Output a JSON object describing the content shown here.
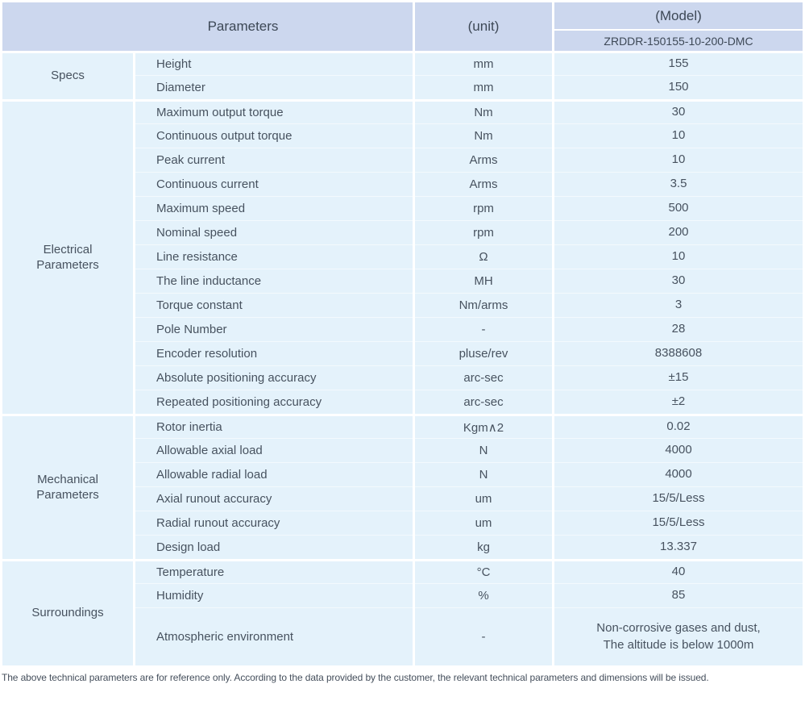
{
  "table": {
    "header": {
      "parameters_label": "Parameters",
      "unit_label": "(unit)",
      "model_label": "(Model)",
      "model_value": "ZRDDR-150155-10-200-DMC"
    },
    "sections": [
      {
        "group": "Specs",
        "rows": [
          {
            "param": "Height",
            "unit": "mm",
            "value": "155"
          },
          {
            "param": "Diameter",
            "unit": "mm",
            "value": "150"
          }
        ]
      },
      {
        "group": "Electrical\nParameters",
        "rows": [
          {
            "param": "Maximum output torque",
            "unit": "Nm",
            "value": "30"
          },
          {
            "param": "Continuous output torque",
            "unit": "Nm",
            "value": "10"
          },
          {
            "param": "Peak current",
            "unit": "Arms",
            "value": "10"
          },
          {
            "param": "Continuous current",
            "unit": "Arms",
            "value": "3.5"
          },
          {
            "param": "Maximum speed",
            "unit": "rpm",
            "value": "500"
          },
          {
            "param": "Nominal speed",
            "unit": "rpm",
            "value": "200"
          },
          {
            "param": "Line resistance",
            "unit": "Ω",
            "value": "10"
          },
          {
            "param": "The line inductance",
            "unit": "MH",
            "value": "30"
          },
          {
            "param": "Torque constant",
            "unit": "Nm/arms",
            "value": "3"
          },
          {
            "param": "Pole Number",
            "unit": "-",
            "value": "28"
          },
          {
            "param": "Encoder resolution",
            "unit": "pluse/rev",
            "value": "8388608"
          },
          {
            "param": "Absolute positioning accuracy",
            "unit": "arc-sec",
            "value": "±15"
          },
          {
            "param": "Repeated positioning accuracy",
            "unit": "arc-sec",
            "value": "±2"
          }
        ]
      },
      {
        "group": "Mechanical\nParameters",
        "rows": [
          {
            "param": "Rotor inertia",
            "unit": "Kgm∧2",
            "value": "0.02"
          },
          {
            "param": "Allowable axial load",
            "unit": "N",
            "value": "4000"
          },
          {
            "param": "Allowable radial load",
            "unit": "N",
            "value": "4000"
          },
          {
            "param": "Axial runout accuracy",
            "unit": "um",
            "value": "15/5/Less"
          },
          {
            "param": "Radial runout accuracy",
            "unit": "um",
            "value": "15/5/Less"
          },
          {
            "param": "Design load",
            "unit": "kg",
            "value": "13.337"
          }
        ]
      },
      {
        "group": "Surroundings",
        "rows": [
          {
            "param": "Temperature",
            "unit": "°C",
            "value": "40"
          },
          {
            "param": "Humidity",
            "unit": "%",
            "value": "85"
          },
          {
            "param": "Atmospheric environment",
            "unit": "-",
            "value": "Non-corrosive gases and dust,\nThe altitude is below 1000m",
            "tall": true
          }
        ]
      }
    ],
    "footnote": "The above technical parameters are for reference only. According to the data provided by the customer, the relevant technical parameters and dimensions will be issued.",
    "colors": {
      "header_bg": "#ccd7ee",
      "row_bg": "#e4f2fb",
      "divider": "#ffffff",
      "header_text": "#3d4856",
      "body_text": "#47525f"
    }
  }
}
